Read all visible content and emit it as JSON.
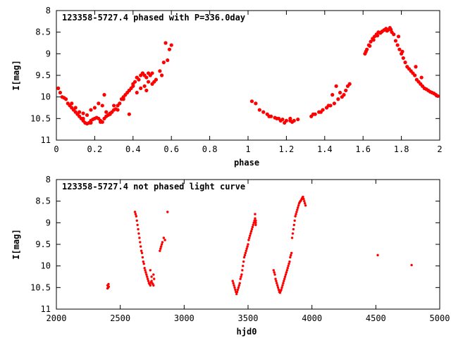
{
  "colors": {
    "points": "#ff0000",
    "axes": "#000000",
    "background": "#ffffff"
  },
  "chart_data": [
    {
      "type": "scatter",
      "title": "123358-5727.4 phased with P=336.0day",
      "xlabel": "phase",
      "ylabel": "I[mag]",
      "xlim": [
        0,
        2
      ],
      "ylim": [
        8,
        11
      ],
      "y_inverted": true,
      "grid": false,
      "marker": "filled-circle",
      "x_ticks": [
        "0",
        "0.2",
        "0.4",
        "0.6",
        "0.8",
        "1",
        "1.2",
        "1.4",
        "1.6",
        "1.8",
        "2"
      ],
      "y_ticks": [
        "8",
        "8.5",
        "9",
        "9.5",
        "10",
        "10.5",
        "11"
      ],
      "points": {
        "x": [
          0.01,
          0.02,
          0.03,
          0.04,
          0.05,
          0.06,
          0.07,
          0.08,
          0.09,
          0.1,
          0.11,
          0.12,
          0.13,
          0.14,
          0.15,
          0.16,
          0.17,
          0.18,
          0.19,
          0.2,
          0.21,
          0.22,
          0.23,
          0.24,
          0.25,
          0.26,
          0.27,
          0.28,
          0.29,
          0.3,
          0.31,
          0.32,
          0.33,
          0.34,
          0.35,
          0.36,
          0.37,
          0.38,
          0.39,
          0.4,
          0.41,
          0.42,
          0.43,
          0.44,
          0.45,
          0.46,
          0.47,
          0.48,
          0.49,
          0.5,
          0.52,
          0.54,
          0.56,
          0.58,
          0.59,
          0.6,
          0.08,
          0.1,
          0.12,
          0.14,
          0.16,
          0.18,
          0.2,
          0.22,
          0.24,
          0.26,
          0.28,
          0.3,
          0.32,
          0.35,
          0.38,
          0.4,
          0.42,
          0.44,
          0.46,
          0.48,
          0.5,
          0.14,
          0.18,
          0.23,
          0.25,
          0.38,
          0.42,
          0.45,
          0.47,
          0.51,
          0.55,
          0.57,
          1.02,
          1.04,
          1.06,
          1.08,
          1.1,
          1.12,
          1.14,
          1.16,
          1.18,
          1.2,
          1.22,
          1.24,
          1.26,
          1.11,
          1.15,
          1.19,
          1.23,
          1.22,
          1.17,
          1.33,
          1.35,
          1.37,
          1.39,
          1.41,
          1.43,
          1.45,
          1.47,
          1.49,
          1.5,
          1.51,
          1.52,
          1.53,
          1.34,
          1.38,
          1.42,
          1.46,
          1.48,
          1.44,
          1.61,
          1.62,
          1.63,
          1.64,
          1.65,
          1.66,
          1.67,
          1.68,
          1.69,
          1.7,
          1.71,
          1.72,
          1.73,
          1.74,
          1.75,
          1.76,
          1.77,
          1.78,
          1.79,
          1.8,
          1.81,
          1.82,
          1.83,
          1.84,
          1.85,
          1.86,
          1.87,
          1.88,
          1.89,
          1.9,
          1.91,
          1.92,
          1.93,
          1.94,
          1.95,
          1.96,
          1.97,
          1.98,
          1.99,
          1.615,
          1.635,
          1.655,
          1.675,
          1.695,
          1.725,
          1.745,
          1.785,
          1.805,
          1.875,
          1.905
        ],
        "y": [
          9.8,
          9.9,
          10.0,
          10.02,
          10.05,
          10.15,
          10.2,
          10.25,
          10.3,
          10.35,
          10.4,
          10.45,
          10.5,
          10.55,
          10.6,
          10.62,
          10.6,
          10.55,
          10.52,
          10.5,
          10.48,
          10.5,
          10.55,
          10.58,
          10.5,
          10.45,
          10.42,
          10.38,
          10.35,
          10.3,
          10.28,
          10.2,
          10.15,
          10.05,
          10.0,
          9.95,
          9.9,
          9.85,
          9.8,
          9.7,
          9.65,
          9.55,
          9.6,
          9.5,
          9.45,
          9.5,
          9.55,
          9.45,
          9.5,
          9.45,
          9.6,
          9.4,
          9.2,
          9.15,
          8.9,
          8.8,
          10.15,
          10.25,
          10.35,
          10.38,
          10.42,
          10.3,
          10.25,
          10.15,
          10.2,
          10.35,
          10.4,
          10.2,
          10.3,
          10.05,
          9.85,
          9.75,
          9.9,
          9.8,
          9.75,
          9.65,
          9.7,
          10.5,
          10.6,
          10.58,
          9.95,
          10.4,
          9.55,
          9.45,
          9.85,
          9.65,
          9.5,
          8.75,
          10.1,
          10.15,
          10.3,
          10.35,
          10.4,
          10.45,
          10.48,
          10.5,
          10.52,
          10.55,
          10.5,
          10.55,
          10.52,
          10.45,
          10.5,
          10.6,
          10.58,
          10.55,
          10.55,
          10.45,
          10.4,
          10.35,
          10.3,
          10.25,
          10.2,
          10.15,
          10.05,
          10.0,
          9.95,
          9.85,
          9.75,
          9.7,
          10.4,
          10.35,
          10.2,
          9.75,
          9.9,
          9.95,
          9.0,
          8.9,
          8.8,
          8.72,
          8.65,
          8.6,
          8.55,
          8.5,
          8.52,
          8.48,
          8.45,
          8.42,
          8.45,
          8.4,
          8.5,
          8.55,
          8.7,
          8.8,
          8.9,
          9.0,
          9.1,
          9.2,
          9.3,
          9.35,
          9.4,
          9.45,
          9.5,
          9.6,
          9.65,
          9.7,
          9.75,
          9.8,
          9.82,
          9.85,
          9.88,
          9.9,
          9.92,
          9.95,
          9.98,
          8.95,
          8.82,
          8.68,
          8.58,
          8.5,
          8.47,
          8.44,
          8.6,
          8.95,
          9.3,
          9.55
        ]
      }
    },
    {
      "type": "scatter",
      "title": "123358-5727.4 not phased light curve",
      "xlabel": "hjd0",
      "ylabel": "I[mag]",
      "xlim": [
        2000,
        5000
      ],
      "ylim": [
        8,
        11
      ],
      "y_inverted": true,
      "grid": false,
      "marker": "small-filled-circle",
      "x_ticks": [
        "2000",
        "2500",
        "3000",
        "3500",
        "4000",
        "4500",
        "5000"
      ],
      "y_ticks": [
        "8",
        "8.5",
        "9",
        "9.5",
        "10",
        "10.5",
        "11"
      ],
      "points": {
        "x": [
          2400,
          2405,
          2410,
          2400,
          2408,
          2615,
          2620,
          2625,
          2630,
          2635,
          2640,
          2645,
          2650,
          2655,
          2660,
          2665,
          2670,
          2675,
          2680,
          2685,
          2690,
          2695,
          2700,
          2705,
          2710,
          2715,
          2720,
          2725,
          2730,
          2735,
          2740,
          2745,
          2750,
          2755,
          2760,
          2765,
          2760,
          2745,
          2735,
          2810,
          2815,
          2820,
          2825,
          2830,
          2840,
          2850,
          2870,
          3380,
          3385,
          3390,
          3395,
          3400,
          3405,
          3410,
          3415,
          3420,
          3425,
          3430,
          3435,
          3440,
          3445,
          3450,
          3455,
          3460,
          3465,
          3470,
          3475,
          3480,
          3485,
          3490,
          3495,
          3500,
          3505,
          3510,
          3515,
          3520,
          3525,
          3530,
          3535,
          3540,
          3545,
          3550,
          3555,
          3555,
          3560,
          3560,
          3560,
          3700,
          3705,
          3710,
          3715,
          3720,
          3725,
          3730,
          3735,
          3740,
          3745,
          3750,
          3755,
          3760,
          3765,
          3770,
          3775,
          3780,
          3785,
          3790,
          3795,
          3800,
          3805,
          3810,
          3815,
          3820,
          3825,
          3830,
          3835,
          3840,
          3845,
          3850,
          3855,
          3860,
          3865,
          3870,
          3875,
          3880,
          3885,
          3890,
          3895,
          3900,
          3905,
          3910,
          3915,
          3920,
          3925,
          3930,
          3935,
          3940,
          3945,
          3950,
          4515,
          4780
        ],
        "y": [
          10.45,
          10.5,
          10.48,
          10.52,
          10.42,
          8.75,
          8.8,
          8.85,
          8.95,
          9.05,
          9.15,
          9.25,
          9.35,
          9.45,
          9.55,
          9.65,
          9.7,
          9.8,
          9.9,
          9.95,
          10.05,
          10.1,
          10.15,
          10.2,
          10.25,
          10.3,
          10.35,
          10.4,
          10.42,
          10.45,
          10.38,
          10.35,
          10.4,
          10.42,
          10.45,
          10.3,
          10.2,
          10.25,
          10.1,
          9.65,
          9.6,
          9.55,
          9.5,
          9.45,
          9.35,
          9.4,
          8.75,
          10.35,
          10.4,
          10.45,
          10.5,
          10.55,
          10.6,
          10.65,
          10.6,
          10.55,
          10.5,
          10.45,
          10.4,
          10.3,
          10.25,
          10.2,
          10.1,
          10.0,
          9.9,
          9.8,
          9.75,
          9.7,
          9.65,
          9.6,
          9.55,
          9.5,
          9.4,
          9.35,
          9.3,
          9.25,
          9.2,
          9.15,
          9.1,
          9.05,
          9.0,
          8.95,
          8.9,
          8.8,
          9.05,
          9.0,
          8.95,
          10.1,
          10.15,
          10.2,
          10.3,
          10.35,
          10.4,
          10.45,
          10.5,
          10.55,
          10.6,
          10.62,
          10.58,
          10.55,
          10.5,
          10.45,
          10.4,
          10.35,
          10.3,
          10.25,
          10.2,
          10.15,
          10.1,
          10.05,
          10.0,
          9.95,
          9.9,
          9.8,
          9.75,
          9.7,
          9.35,
          9.25,
          9.15,
          9.05,
          8.95,
          8.85,
          8.8,
          8.75,
          8.7,
          8.65,
          8.6,
          8.55,
          8.52,
          8.5,
          8.48,
          8.45,
          8.42,
          8.4,
          8.45,
          8.5,
          8.55,
          8.6,
          9.75,
          9.98
        ]
      }
    }
  ]
}
